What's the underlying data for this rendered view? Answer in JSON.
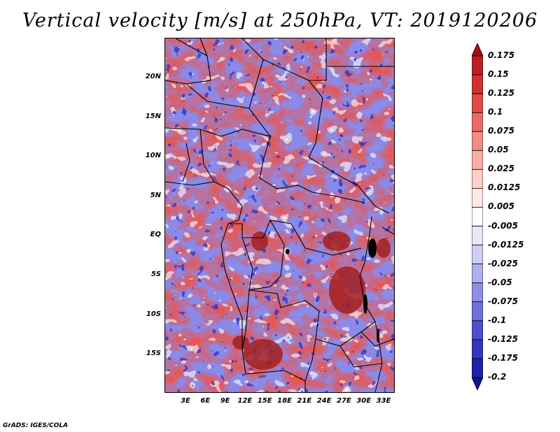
{
  "title": "Vertical velocity [m/s] at 250hPa, VT: 2019120206",
  "credit": "GrADS: IGES/COLA",
  "map": {
    "lat_ticks": [
      "20N",
      "15N",
      "10N",
      "5N",
      "EQ",
      "5S",
      "10S",
      "15S"
    ],
    "lon_ticks": [
      "3E",
      "6E",
      "9E",
      "12E",
      "15E",
      "18E",
      "21E",
      "24E",
      "27E",
      "30E",
      "33E"
    ]
  },
  "colorbar": {
    "levels": [
      "0.175",
      "0.15",
      "0.125",
      "0.1",
      "0.075",
      "0.05",
      "0.025",
      "0.0125",
      "0.005",
      "-0.005",
      "-0.0125",
      "-0.025",
      "-0.05",
      "-0.075",
      "-0.1",
      "-0.125",
      "-0.175",
      "-0.2"
    ],
    "colors": [
      "#a50f15",
      "#be1e22",
      "#d42f2f",
      "#e24a45",
      "#ec6b62",
      "#f38d84",
      "#f8aea6",
      "#fccfc9",
      "#fee9e6",
      "#ffffff",
      "#e8e8fb",
      "#cfcff6",
      "#b0b0f0",
      "#8f8fe6",
      "#6f6fdc",
      "#4f4fcf",
      "#3434c0",
      "#2020ac",
      "#14148f"
    ]
  }
}
